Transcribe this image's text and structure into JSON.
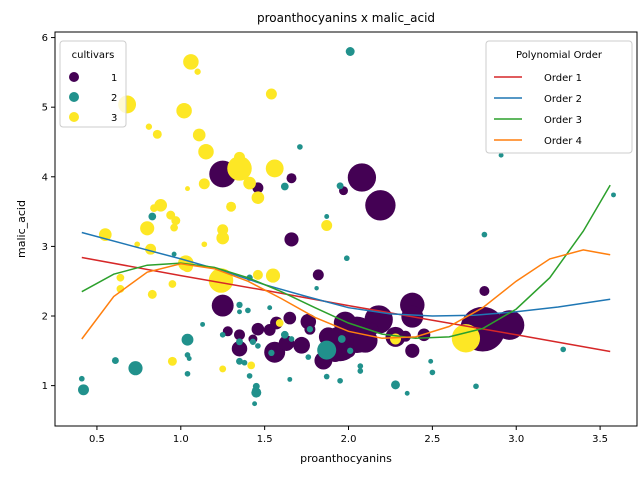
{
  "chart_data": {
    "type": "scatter",
    "title": "proanthocyanins x malic_acid",
    "xlabel": "proanthocyanins",
    "ylabel": "malic_acid",
    "xlim": [
      0.25,
      3.72
    ],
    "ylim": [
      0.42,
      6.08
    ],
    "xticks": [
      "0.5",
      "1.0",
      "1.5",
      "2.0",
      "2.5",
      "3.0",
      "3.5"
    ],
    "yticks": [
      "1",
      "2",
      "3",
      "4",
      "5",
      "6"
    ],
    "xtick_values": [
      0.5,
      1.0,
      1.5,
      2.0,
      2.5,
      3.0,
      3.5
    ],
    "ytick_values": [
      1,
      2,
      3,
      4,
      5,
      6
    ],
    "grid": false,
    "cultivar_legend": {
      "title": "cultivars",
      "placement": "top-left",
      "entries": [
        {
          "label": "1",
          "color": "#440154"
        },
        {
          "label": "2",
          "color": "#21918c"
        },
        {
          "label": "3",
          "color": "#fde725"
        }
      ]
    },
    "fit_legend": {
      "title": "Polynomial Order",
      "placement": "top-right",
      "entries": [
        {
          "label": "Order 1",
          "color": "#d62728"
        },
        {
          "label": "Order 2",
          "color": "#1f77b4"
        },
        {
          "label": "Order 3",
          "color": "#2ca02c"
        },
        {
          "label": "Order 4",
          "color": "#ff7f0e"
        }
      ]
    },
    "fit_lines": [
      {
        "order": 1,
        "color": "#d62728",
        "x": [
          0.41,
          1.0,
          1.5,
          2.0,
          2.5,
          3.0,
          3.56
        ],
        "y": [
          2.84,
          2.58,
          2.37,
          2.15,
          1.94,
          1.73,
          1.49
        ]
      },
      {
        "order": 2,
        "color": "#1f77b4",
        "x": [
          0.41,
          0.75,
          1.0,
          1.25,
          1.5,
          1.75,
          2.0,
          2.25,
          2.5,
          2.75,
          3.0,
          3.25,
          3.56
        ],
        "y": [
          3.2,
          2.98,
          2.82,
          2.65,
          2.45,
          2.28,
          2.12,
          2.03,
          2.0,
          2.01,
          2.06,
          2.13,
          2.24
        ]
      },
      {
        "order": 3,
        "color": "#2ca02c",
        "x": [
          0.41,
          0.6,
          0.8,
          1.0,
          1.2,
          1.4,
          1.6,
          1.8,
          2.0,
          2.2,
          2.4,
          2.6,
          2.8,
          3.0,
          3.2,
          3.4,
          3.56
        ],
        "y": [
          2.35,
          2.6,
          2.73,
          2.76,
          2.7,
          2.55,
          2.35,
          2.12,
          1.9,
          1.74,
          1.68,
          1.7,
          1.82,
          2.1,
          2.55,
          3.22,
          3.88
        ]
      },
      {
        "order": 4,
        "color": "#ff7f0e",
        "x": [
          0.41,
          0.6,
          0.8,
          1.0,
          1.2,
          1.4,
          1.6,
          1.8,
          2.0,
          2.2,
          2.4,
          2.6,
          2.8,
          3.0,
          3.2,
          3.4,
          3.56
        ],
        "y": [
          1.67,
          2.28,
          2.63,
          2.75,
          2.68,
          2.5,
          2.25,
          1.98,
          1.78,
          1.68,
          1.7,
          1.85,
          2.12,
          2.5,
          2.82,
          2.95,
          2.88
        ]
      }
    ],
    "series": [
      {
        "name": "1",
        "color": "#440154",
        "points": [
          {
            "x": 1.25,
            "y": 4.04,
            "size": 180
          },
          {
            "x": 2.08,
            "y": 3.99,
            "size": 200
          },
          {
            "x": 2.19,
            "y": 3.59,
            "size": 230
          },
          {
            "x": 1.25,
            "y": 2.15,
            "size": 120
          },
          {
            "x": 1.66,
            "y": 3.1,
            "size": 50
          },
          {
            "x": 1.66,
            "y": 3.98,
            "size": 25
          },
          {
            "x": 1.46,
            "y": 3.84,
            "size": 30
          },
          {
            "x": 1.97,
            "y": 3.8,
            "size": 20
          },
          {
            "x": 1.82,
            "y": 2.59,
            "size": 30
          },
          {
            "x": 2.81,
            "y": 2.36,
            "size": 25
          },
          {
            "x": 2.38,
            "y": 2.16,
            "size": 150
          },
          {
            "x": 2.38,
            "y": 1.99,
            "size": 120
          },
          {
            "x": 2.18,
            "y": 1.95,
            "size": 200
          },
          {
            "x": 1.98,
            "y": 1.9,
            "size": 130
          },
          {
            "x": 1.76,
            "y": 1.92,
            "size": 60
          },
          {
            "x": 1.65,
            "y": 1.97,
            "size": 40
          },
          {
            "x": 1.57,
            "y": 1.9,
            "size": 40
          },
          {
            "x": 1.46,
            "y": 1.81,
            "size": 40
          },
          {
            "x": 1.53,
            "y": 1.8,
            "size": 35
          },
          {
            "x": 1.28,
            "y": 1.78,
            "size": 25
          },
          {
            "x": 1.35,
            "y": 1.73,
            "size": 30
          },
          {
            "x": 1.35,
            "y": 1.53,
            "size": 60
          },
          {
            "x": 1.56,
            "y": 1.48,
            "size": 110
          },
          {
            "x": 1.63,
            "y": 1.61,
            "size": 60
          },
          {
            "x": 1.72,
            "y": 1.58,
            "size": 70
          },
          {
            "x": 1.85,
            "y": 1.36,
            "size": 80
          },
          {
            "x": 1.88,
            "y": 1.7,
            "size": 90
          },
          {
            "x": 1.95,
            "y": 1.6,
            "size": 300
          },
          {
            "x": 2.05,
            "y": 1.73,
            "size": 330
          },
          {
            "x": 2.1,
            "y": 1.65,
            "size": 150
          },
          {
            "x": 1.92,
            "y": 1.45,
            "size": 60
          },
          {
            "x": 2.0,
            "y": 1.5,
            "size": 50
          },
          {
            "x": 2.28,
            "y": 1.7,
            "size": 100
          },
          {
            "x": 2.38,
            "y": 1.5,
            "size": 50
          },
          {
            "x": 2.45,
            "y": 1.73,
            "size": 40
          },
          {
            "x": 2.34,
            "y": 1.71,
            "size": 30
          },
          {
            "x": 2.8,
            "y": 1.81,
            "size": 500
          },
          {
            "x": 2.96,
            "y": 1.87,
            "size": 220
          },
          {
            "x": 1.77,
            "y": 1.81,
            "size": 30
          },
          {
            "x": 2.14,
            "y": 1.81,
            "size": 40
          },
          {
            "x": 1.43,
            "y": 1.67,
            "size": 20
          }
        ]
      },
      {
        "name": "2",
        "color": "#21918c",
        "points": [
          {
            "x": 2.01,
            "y": 5.8,
            "size": 20
          },
          {
            "x": 1.71,
            "y": 4.43,
            "size": 8
          },
          {
            "x": 1.62,
            "y": 3.86,
            "size": 15
          },
          {
            "x": 1.95,
            "y": 3.87,
            "size": 12
          },
          {
            "x": 0.83,
            "y": 3.43,
            "size": 15
          },
          {
            "x": 1.87,
            "y": 3.43,
            "size": 6
          },
          {
            "x": 2.81,
            "y": 3.17,
            "size": 8
          },
          {
            "x": 0.96,
            "y": 2.89,
            "size": 6
          },
          {
            "x": 1.99,
            "y": 2.83,
            "size": 8
          },
          {
            "x": 1.41,
            "y": 2.55,
            "size": 10
          },
          {
            "x": 1.81,
            "y": 2.4,
            "size": 5
          },
          {
            "x": 3.58,
            "y": 3.74,
            "size": 6
          },
          {
            "x": 2.91,
            "y": 4.31,
            "size": 6
          },
          {
            "x": 1.35,
            "y": 2.16,
            "size": 10
          },
          {
            "x": 1.35,
            "y": 2.06,
            "size": 6
          },
          {
            "x": 1.4,
            "y": 2.08,
            "size": 8
          },
          {
            "x": 1.53,
            "y": 2.12,
            "size": 6
          },
          {
            "x": 1.04,
            "y": 1.66,
            "size": 35
          },
          {
            "x": 1.13,
            "y": 1.88,
            "size": 6
          },
          {
            "x": 1.87,
            "y": 1.51,
            "size": 90
          },
          {
            "x": 1.62,
            "y": 1.73,
            "size": 15
          },
          {
            "x": 1.77,
            "y": 1.81,
            "size": 10
          },
          {
            "x": 1.96,
            "y": 1.67,
            "size": 15
          },
          {
            "x": 1.66,
            "y": 1.67,
            "size": 8
          },
          {
            "x": 1.35,
            "y": 1.63,
            "size": 12
          },
          {
            "x": 1.43,
            "y": 1.63,
            "size": 10
          },
          {
            "x": 1.25,
            "y": 1.73,
            "size": 8
          },
          {
            "x": 1.46,
            "y": 1.57,
            "size": 8
          },
          {
            "x": 1.54,
            "y": 1.47,
            "size": 10
          },
          {
            "x": 1.76,
            "y": 1.41,
            "size": 8
          },
          {
            "x": 2.01,
            "y": 1.5,
            "size": 10
          },
          {
            "x": 2.07,
            "y": 1.28,
            "size": 8
          },
          {
            "x": 2.07,
            "y": 1.21,
            "size": 8
          },
          {
            "x": 2.28,
            "y": 1.01,
            "size": 20
          },
          {
            "x": 2.5,
            "y": 1.19,
            "size": 8
          },
          {
            "x": 2.49,
            "y": 1.35,
            "size": 6
          },
          {
            "x": 2.76,
            "y": 0.99,
            "size": 8
          },
          {
            "x": 3.28,
            "y": 1.52,
            "size": 8
          },
          {
            "x": 0.73,
            "y": 1.25,
            "size": 50
          },
          {
            "x": 0.61,
            "y": 1.36,
            "size": 12
          },
          {
            "x": 0.42,
            "y": 0.94,
            "size": 30
          },
          {
            "x": 0.41,
            "y": 1.1,
            "size": 8
          },
          {
            "x": 1.04,
            "y": 1.17,
            "size": 8
          },
          {
            "x": 1.04,
            "y": 1.44,
            "size": 8
          },
          {
            "x": 1.05,
            "y": 1.39,
            "size": 6
          },
          {
            "x": 1.35,
            "y": 1.35,
            "size": 12
          },
          {
            "x": 1.38,
            "y": 1.33,
            "size": 8
          },
          {
            "x": 1.41,
            "y": 1.14,
            "size": 8
          },
          {
            "x": 1.45,
            "y": 0.99,
            "size": 12
          },
          {
            "x": 1.45,
            "y": 0.9,
            "size": 25
          },
          {
            "x": 1.44,
            "y": 0.94,
            "size": 6
          },
          {
            "x": 1.44,
            "y": 0.74,
            "size": 6
          },
          {
            "x": 1.65,
            "y": 1.09,
            "size": 6
          },
          {
            "x": 1.87,
            "y": 1.13,
            "size": 8
          },
          {
            "x": 1.95,
            "y": 1.07,
            "size": 8
          },
          {
            "x": 2.35,
            "y": 0.89,
            "size": 6
          }
        ]
      },
      {
        "name": "3",
        "color": "#fde725",
        "points": [
          {
            "x": 1.06,
            "y": 5.65,
            "size": 60
          },
          {
            "x": 1.1,
            "y": 5.51,
            "size": 10
          },
          {
            "x": 0.68,
            "y": 5.04,
            "size": 80
          },
          {
            "x": 1.02,
            "y": 4.95,
            "size": 60
          },
          {
            "x": 1.54,
            "y": 5.19,
            "size": 30
          },
          {
            "x": 0.81,
            "y": 4.72,
            "size": 10
          },
          {
            "x": 0.86,
            "y": 4.61,
            "size": 20
          },
          {
            "x": 1.11,
            "y": 4.6,
            "size": 40
          },
          {
            "x": 1.15,
            "y": 4.36,
            "size": 60
          },
          {
            "x": 1.35,
            "y": 4.28,
            "size": 30
          },
          {
            "x": 1.35,
            "y": 4.12,
            "size": 150
          },
          {
            "x": 1.56,
            "y": 4.12,
            "size": 80
          },
          {
            "x": 1.41,
            "y": 3.91,
            "size": 40
          },
          {
            "x": 1.14,
            "y": 3.9,
            "size": 30
          },
          {
            "x": 1.04,
            "y": 3.83,
            "size": 6
          },
          {
            "x": 1.46,
            "y": 3.7,
            "size": 40
          },
          {
            "x": 0.88,
            "y": 3.59,
            "size": 40
          },
          {
            "x": 1.3,
            "y": 3.57,
            "size": 25
          },
          {
            "x": 0.84,
            "y": 3.55,
            "size": 15
          },
          {
            "x": 0.94,
            "y": 3.45,
            "size": 20
          },
          {
            "x": 0.97,
            "y": 3.37,
            "size": 20
          },
          {
            "x": 1.87,
            "y": 3.3,
            "size": 30
          },
          {
            "x": 0.8,
            "y": 3.26,
            "size": 50
          },
          {
            "x": 0.96,
            "y": 3.27,
            "size": 15
          },
          {
            "x": 1.25,
            "y": 3.24,
            "size": 30
          },
          {
            "x": 0.55,
            "y": 3.17,
            "size": 40
          },
          {
            "x": 1.25,
            "y": 3.12,
            "size": 40
          },
          {
            "x": 0.74,
            "y": 3.03,
            "size": 8
          },
          {
            "x": 1.14,
            "y": 3.03,
            "size": 8
          },
          {
            "x": 0.82,
            "y": 2.96,
            "size": 30
          },
          {
            "x": 1.03,
            "y": 2.76,
            "size": 60
          },
          {
            "x": 1.04,
            "y": 2.71,
            "size": 30
          },
          {
            "x": 1.24,
            "y": 2.51,
            "size": 150
          },
          {
            "x": 1.46,
            "y": 2.59,
            "size": 25
          },
          {
            "x": 1.55,
            "y": 2.58,
            "size": 50
          },
          {
            "x": 0.64,
            "y": 2.55,
            "size": 15
          },
          {
            "x": 0.64,
            "y": 2.39,
            "size": 15
          },
          {
            "x": 0.83,
            "y": 2.31,
            "size": 20
          },
          {
            "x": 0.95,
            "y": 2.46,
            "size": 15
          },
          {
            "x": 1.59,
            "y": 1.9,
            "size": 15
          },
          {
            "x": 2.7,
            "y": 1.68,
            "size": 200
          },
          {
            "x": 2.28,
            "y": 1.67,
            "size": 30
          },
          {
            "x": 1.25,
            "y": 1.24,
            "size": 12
          },
          {
            "x": 0.95,
            "y": 1.35,
            "size": 20
          },
          {
            "x": 1.42,
            "y": 1.29,
            "size": 15
          }
        ]
      }
    ]
  }
}
